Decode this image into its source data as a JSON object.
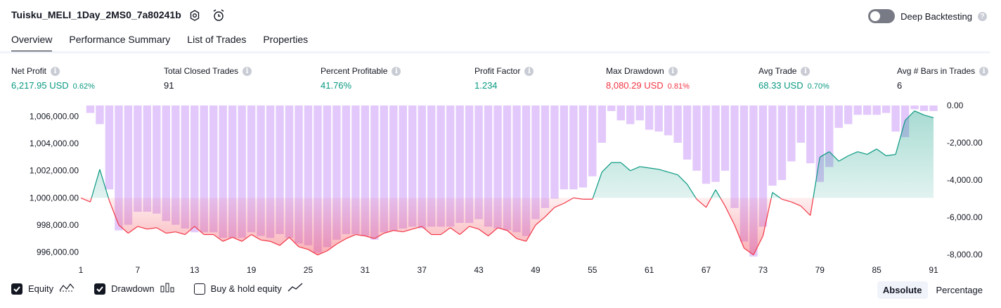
{
  "header": {
    "title": "Tuisku_MELI_1Day_2MS0_7a80241b",
    "icons": [
      "settings-icon",
      "alarm-add-icon"
    ],
    "deep_backtesting_label": "Deep Backtesting",
    "deep_backtesting_on": false
  },
  "tabs": [
    {
      "label": "Overview",
      "active": true
    },
    {
      "label": "Performance Summary",
      "active": false
    },
    {
      "label": "List of Trades",
      "active": false
    },
    {
      "label": "Properties",
      "active": false
    }
  ],
  "stats": {
    "net_profit": {
      "label": "Net Profit",
      "value": "6,217.95 USD",
      "pct": "0.62%"
    },
    "total_closed_trades": {
      "label": "Total Closed Trades",
      "value": "91"
    },
    "percent_profitable": {
      "label": "Percent Profitable",
      "value": "41.76%"
    },
    "profit_factor": {
      "label": "Profit Factor",
      "value": "1.234"
    },
    "max_drawdown": {
      "label": "Max Drawdown",
      "value": "8,080.29 USD",
      "pct": "0.81%"
    },
    "avg_trade": {
      "label": "Avg Trade",
      "value": "68.33 USD",
      "pct": "0.70%"
    },
    "avg_bars": {
      "label": "Avg # Bars in Trades",
      "value": "6"
    }
  },
  "colors": {
    "positive": "#089981",
    "negative": "#f23645",
    "drawdown_bar": "#e1c6fb",
    "equity_fill_pos": "#d6efe9",
    "equity_fill_neg": "#fbd1d6"
  },
  "chart_data": {
    "type": "area",
    "x_ticks": [
      "1",
      "7",
      "13",
      "19",
      "25",
      "31",
      "37",
      "43",
      "49",
      "55",
      "61",
      "67",
      "73",
      "79",
      "85",
      "91"
    ],
    "left_axis_ticks": [
      "1,006,000.00",
      "1,004,000.00",
      "1,002,000.00",
      "1,000,000.00",
      "998,000.00",
      "996,000.00"
    ],
    "right_axis_ticks": [
      "0.00",
      "-2,000.00",
      "-4,000.00",
      "-6,000.00",
      "-8,000.00"
    ],
    "equity_baseline": 1000000,
    "equity_ylim": [
      995000,
      1006800
    ],
    "drawdown_ylim": [
      -8600,
      0
    ],
    "series": [
      {
        "name": "Equity",
        "values": [
          1000000,
          999700,
          1002100,
          999800,
          998000,
          997400,
          997900,
          997700,
          997800,
          997400,
          997500,
          997300,
          997900,
          997300,
          997300,
          996800,
          997100,
          996800,
          997300,
          996900,
          996800,
          996500,
          997100,
          996400,
          996200,
          995800,
          996100,
          996600,
          997000,
          997300,
          997200,
          997000,
          997400,
          997600,
          997500,
          997700,
          997900,
          997300,
          997300,
          997800,
          997300,
          997900,
          997700,
          997200,
          997800,
          997600,
          997000,
          996800,
          998000,
          998600,
          999300,
          999600,
          1000000,
          999900,
          999900,
          1001900,
          1002600,
          1002600,
          1002000,
          1002300,
          1002200,
          1002100,
          1001900,
          1001700,
          1001000,
          999900,
          999300,
          1000600,
          999400,
          998000,
          996300,
          995800,
          997200,
          1000400,
          999900,
          999700,
          999400,
          998700,
          1003000,
          1003400,
          1002700,
          1003100,
          1003400,
          1003200,
          1003600,
          1003100,
          1003200,
          1005700,
          1006400,
          1006100,
          1005900
        ]
      },
      {
        "name": "Drawdown",
        "values": [
          0,
          -400,
          -1000,
          -4500,
          -6700,
          -6400,
          -5700,
          -5700,
          -5800,
          -6200,
          -6400,
          -6600,
          -6800,
          -6800,
          -6800,
          -7100,
          -7100,
          -7100,
          -6800,
          -7000,
          -7100,
          -6900,
          -7100,
          -7400,
          -7500,
          -7900,
          -7600,
          -7200,
          -6900,
          -6900,
          -7000,
          -7200,
          -6800,
          -6700,
          -6600,
          -6500,
          -6600,
          -6500,
          -6500,
          -6500,
          -6300,
          -6300,
          -6100,
          -6500,
          -6600,
          -6700,
          -6800,
          -7000,
          -6100,
          -5500,
          -5000,
          -4500,
          -4500,
          -4400,
          -3800,
          -2000,
          -300,
          -800,
          -1000,
          -800,
          -1300,
          -1400,
          -1600,
          -2000,
          -2900,
          -3500,
          -4200,
          -4100,
          -3500,
          -5500,
          -7300,
          -8100,
          -6500,
          -4300,
          -4000,
          -3000,
          -2000,
          -3100,
          -4100,
          -3300,
          -1200,
          -1000,
          -500,
          -500,
          -500,
          -400,
          -1400,
          -1700,
          -200,
          -300,
          -300
        ]
      }
    ]
  },
  "legend": {
    "equity_label": "Equity",
    "equity_checked": true,
    "drawdown_label": "Drawdown",
    "drawdown_checked": true,
    "buyhold_label": "Buy & hold equity",
    "buyhold_checked": false
  },
  "modes": [
    {
      "label": "Absolute",
      "active": true
    },
    {
      "label": "Percentage",
      "active": false
    }
  ]
}
